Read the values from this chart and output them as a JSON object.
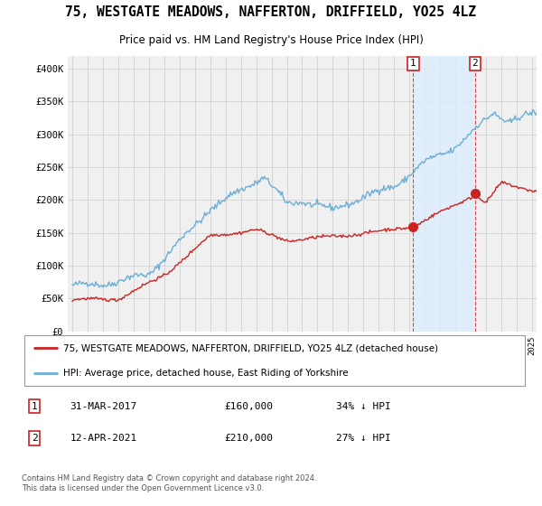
{
  "title": "75, WESTGATE MEADOWS, NAFFERTON, DRIFFIELD, YO25 4LZ",
  "subtitle": "Price paid vs. HM Land Registry's House Price Index (HPI)",
  "ylabel_ticks": [
    "£0",
    "£50K",
    "£100K",
    "£150K",
    "£200K",
    "£250K",
    "£300K",
    "£350K",
    "£400K"
  ],
  "ytick_values": [
    0,
    50000,
    100000,
    150000,
    200000,
    250000,
    300000,
    350000,
    400000
  ],
  "ylim": [
    0,
    420000
  ],
  "xlim_start": 1994.7,
  "xlim_end": 2025.3,
  "hpi_color": "#6baed6",
  "price_color": "#cc2222",
  "shade_color": "#ddeeff",
  "marker1_x": 2017.25,
  "marker1_y": 160000,
  "marker2_x": 2021.28,
  "marker2_y": 210000,
  "vline1_x": 2017.25,
  "vline2_x": 2021.28,
  "legend_label1": "75, WESTGATE MEADOWS, NAFFERTON, DRIFFIELD, YO25 4LZ (detached house)",
  "legend_label2": "HPI: Average price, detached house, East Riding of Yorkshire",
  "footer": "Contains HM Land Registry data © Crown copyright and database right 2024.\nThis data is licensed under the Open Government Licence v3.0.",
  "bg_color": "#ffffff",
  "plot_bg_color": "#f0f0f0",
  "grid_color": "#cccccc"
}
